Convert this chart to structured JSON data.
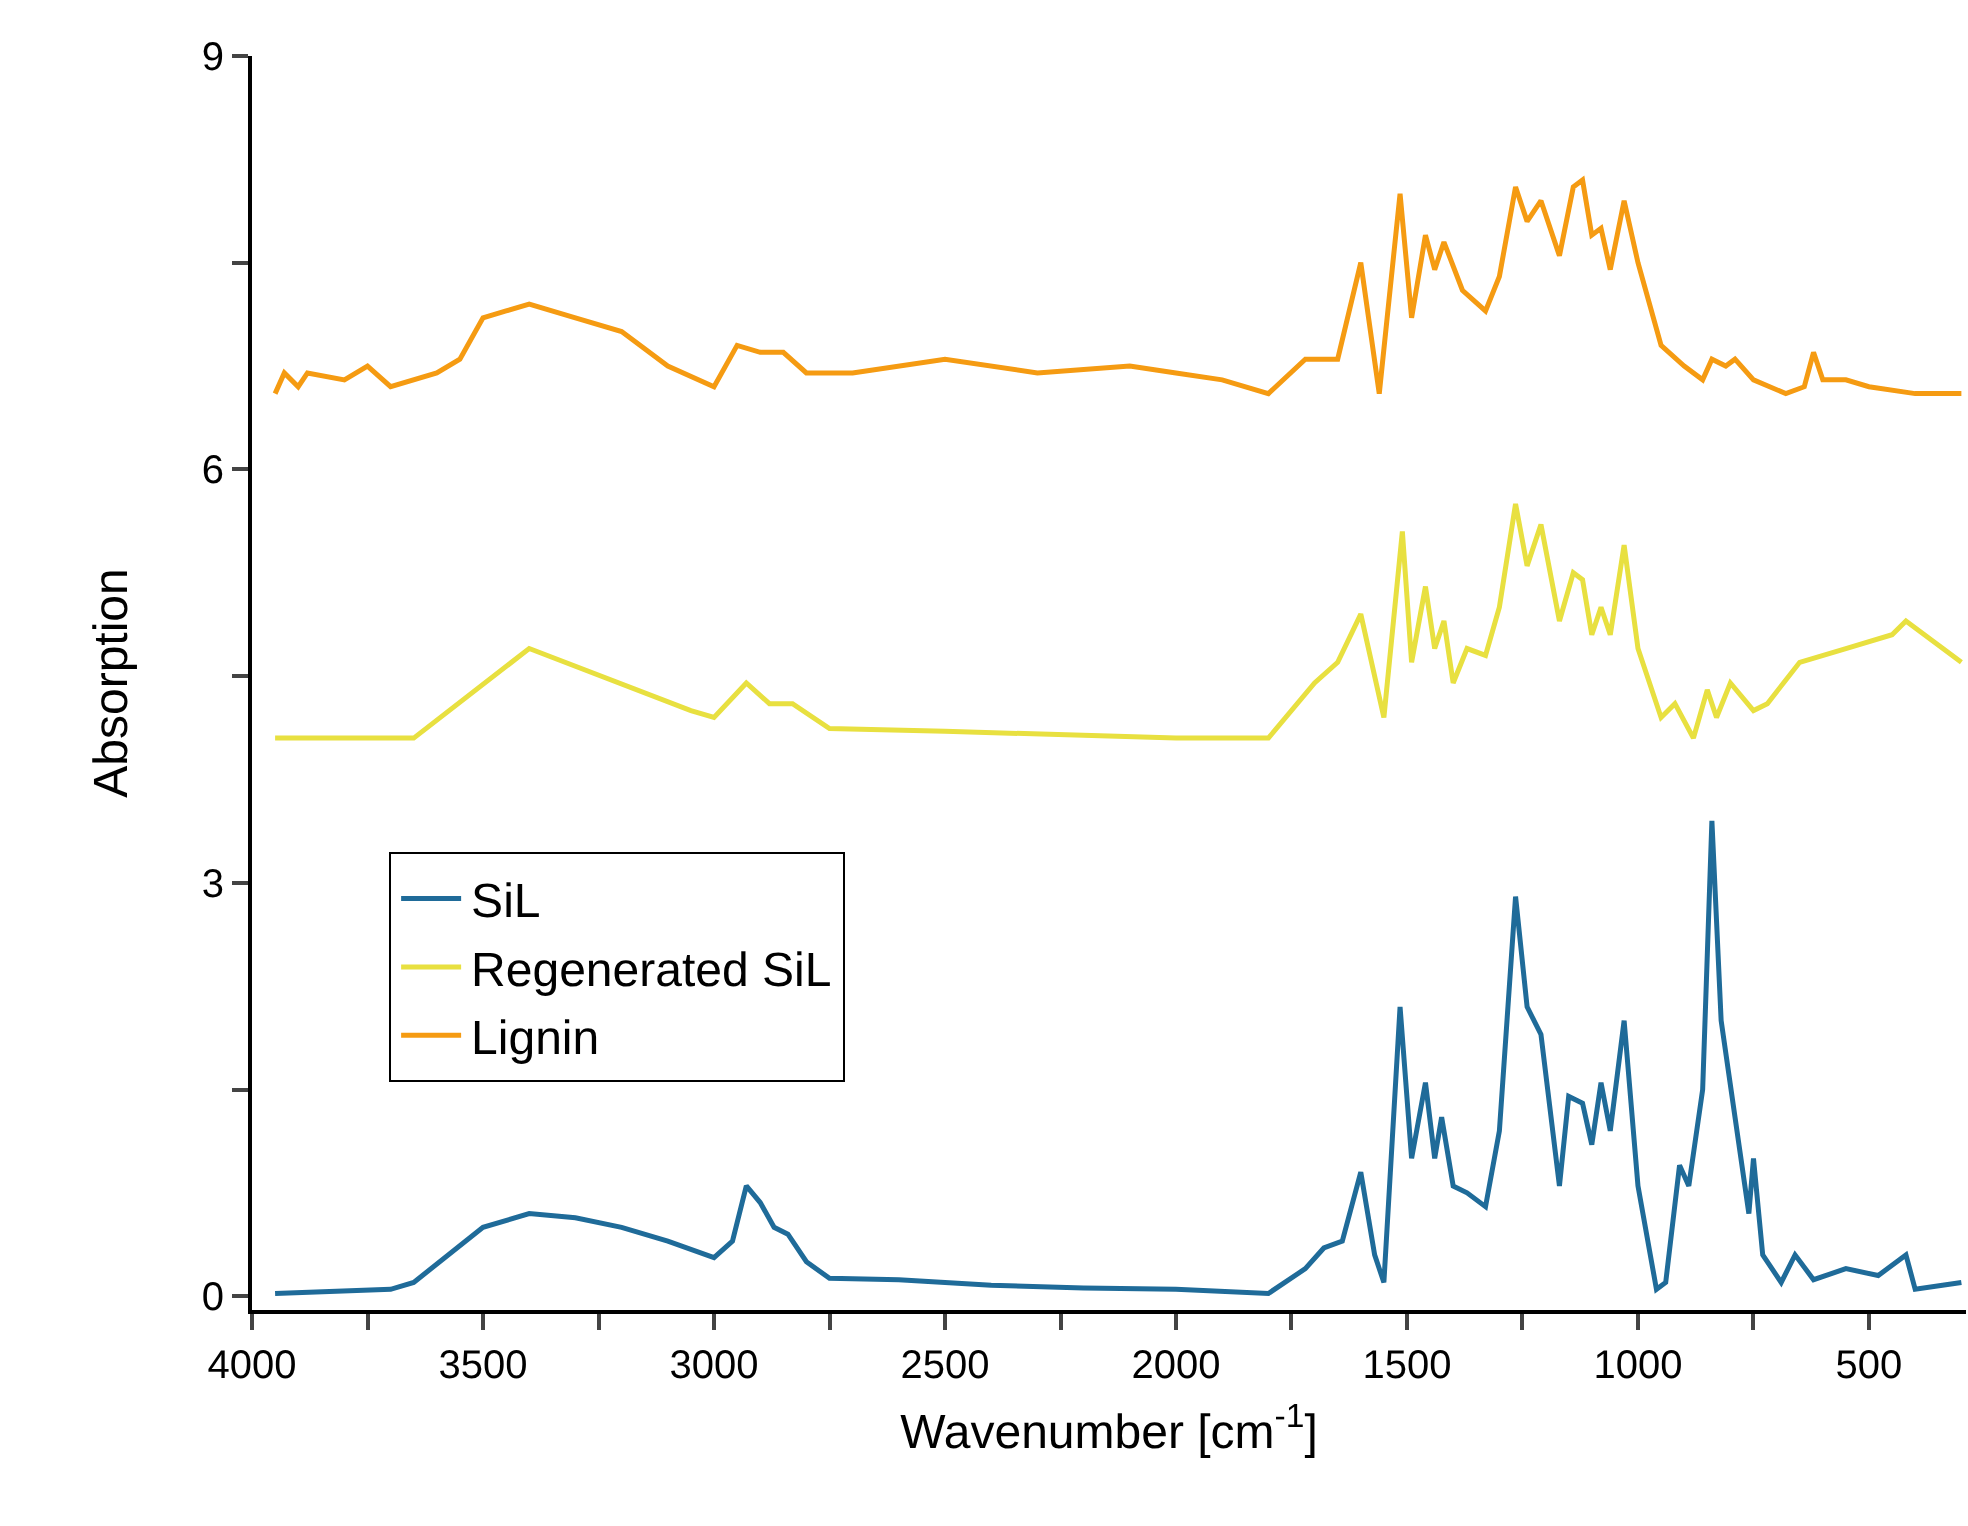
{
  "chart_data": {
    "type": "line",
    "xlabel": "Wavenumber [cm$^{-1}$]",
    "ylabel": "Absorption",
    "xlim": [
      4000,
      290
    ],
    "xticks": [
      4000,
      {
        "value": 3750,
        "label": null
      },
      3500,
      {
        "value": 3250,
        "label": null
      },
      3000,
      {
        "value": 2750,
        "label": null
      },
      2500,
      {
        "value": 2250,
        "label": null
      },
      2000,
      {
        "value": 1750,
        "label": null
      },
      1500,
      {
        "value": 1250,
        "label": null
      },
      1000,
      {
        "value": 750,
        "label": null
      },
      500
    ],
    "ylim": [
      -0.1,
      9
    ],
    "yticks": [
      0,
      {
        "value": 1.5,
        "label": null
      },
      3,
      {
        "value": 4.5,
        "label": null
      },
      6,
      {
        "value": 7.5,
        "label": null
      },
      9
    ],
    "grid": false,
    "legend": "left",
    "line_style": "solid",
    "marker": "none",
    "series": [
      {
        "name": "SiL",
        "color": "#1f6b99",
        "x": [
          3950,
          3700,
          3650,
          3500,
          3400,
          3300,
          3200,
          3100,
          3000,
          2960,
          2930,
          2900,
          2870,
          2840,
          2800,
          2750,
          2600,
          2400,
          2200,
          2000,
          1800,
          1720,
          1680,
          1640,
          1600,
          1570,
          1550,
          1515,
          1490,
          1460,
          1440,
          1425,
          1400,
          1370,
          1330,
          1300,
          1265,
          1240,
          1210,
          1170,
          1150,
          1120,
          1100,
          1080,
          1060,
          1030,
          1000,
          960,
          940,
          910,
          890,
          860,
          840,
          820,
          790,
          760,
          750,
          730,
          690,
          660,
          620,
          550,
          480,
          420,
          400,
          300
        ],
        "values": [
          0.02,
          0.05,
          0.1,
          0.5,
          0.6,
          0.57,
          0.5,
          0.4,
          0.28,
          0.4,
          0.8,
          0.68,
          0.5,
          0.45,
          0.25,
          0.13,
          0.12,
          0.08,
          0.06,
          0.05,
          0.02,
          0.2,
          0.35,
          0.4,
          0.9,
          0.3,
          0.1,
          2.1,
          1.0,
          1.55,
          1.0,
          1.3,
          0.8,
          0.75,
          0.65,
          1.2,
          2.9,
          2.1,
          1.9,
          0.8,
          1.45,
          1.4,
          1.1,
          1.55,
          1.2,
          2.0,
          0.8,
          0.05,
          0.1,
          0.95,
          0.8,
          1.5,
          3.45,
          2.0,
          1.3,
          0.6,
          1.0,
          0.3,
          0.1,
          0.3,
          0.12,
          0.2,
          0.15,
          0.3,
          0.05,
          0.1
        ]
      },
      {
        "name": "Regenerated SiL",
        "color": "#e8e040",
        "x": [
          3950,
          3650,
          3400,
          3050,
          3000,
          2930,
          2880,
          2830,
          2750,
          2500,
          2000,
          1800,
          1700,
          1650,
          1600,
          1550,
          1510,
          1490,
          1460,
          1440,
          1420,
          1400,
          1370,
          1330,
          1300,
          1265,
          1240,
          1210,
          1170,
          1140,
          1120,
          1100,
          1080,
          1060,
          1030,
          1000,
          950,
          920,
          880,
          850,
          830,
          800,
          750,
          720,
          650,
          550,
          450,
          420,
          300
        ],
        "values": [
          4.05,
          4.05,
          4.7,
          4.25,
          4.2,
          4.45,
          4.3,
          4.3,
          4.12,
          4.1,
          4.05,
          4.05,
          4.45,
          4.6,
          4.95,
          4.2,
          5.55,
          4.6,
          5.15,
          4.7,
          4.9,
          4.45,
          4.7,
          4.65,
          5.0,
          5.75,
          5.3,
          5.6,
          4.9,
          5.25,
          5.2,
          4.8,
          5.0,
          4.8,
          5.45,
          4.7,
          4.2,
          4.3,
          4.05,
          4.4,
          4.2,
          4.45,
          4.25,
          4.3,
          4.6,
          4.7,
          4.8,
          4.9,
          4.6
        ]
      },
      {
        "name": "Lignin",
        "color": "#f59b12",
        "x": [
          3950,
          3930,
          3900,
          3880,
          3800,
          3750,
          3700,
          3600,
          3550,
          3500,
          3450,
          3400,
          3300,
          3200,
          3100,
          3000,
          2950,
          2900,
          2850,
          2800,
          2700,
          2500,
          2300,
          2100,
          2000,
          1900,
          1800,
          1720,
          1650,
          1600,
          1560,
          1515,
          1490,
          1460,
          1440,
          1420,
          1380,
          1330,
          1300,
          1265,
          1240,
          1210,
          1170,
          1140,
          1120,
          1100,
          1080,
          1060,
          1030,
          1000,
          950,
          900,
          860,
          840,
          810,
          790,
          750,
          680,
          640,
          620,
          600,
          550,
          500,
          400,
          300
        ],
        "values": [
          6.55,
          6.7,
          6.6,
          6.7,
          6.65,
          6.75,
          6.6,
          6.7,
          6.8,
          7.1,
          7.15,
          7.2,
          7.1,
          7.0,
          6.75,
          6.6,
          6.9,
          6.85,
          6.85,
          6.7,
          6.7,
          6.8,
          6.7,
          6.75,
          6.7,
          6.65,
          6.55,
          6.8,
          6.8,
          7.5,
          6.55,
          8.0,
          7.1,
          7.7,
          7.45,
          7.65,
          7.3,
          7.15,
          7.4,
          8.05,
          7.8,
          7.95,
          7.55,
          8.05,
          8.1,
          7.7,
          7.75,
          7.45,
          7.95,
          7.5,
          6.9,
          6.75,
          6.65,
          6.8,
          6.75,
          6.8,
          6.65,
          6.55,
          6.6,
          6.85,
          6.65,
          6.65,
          6.6,
          6.55,
          6.55
        ]
      }
    ]
  }
}
